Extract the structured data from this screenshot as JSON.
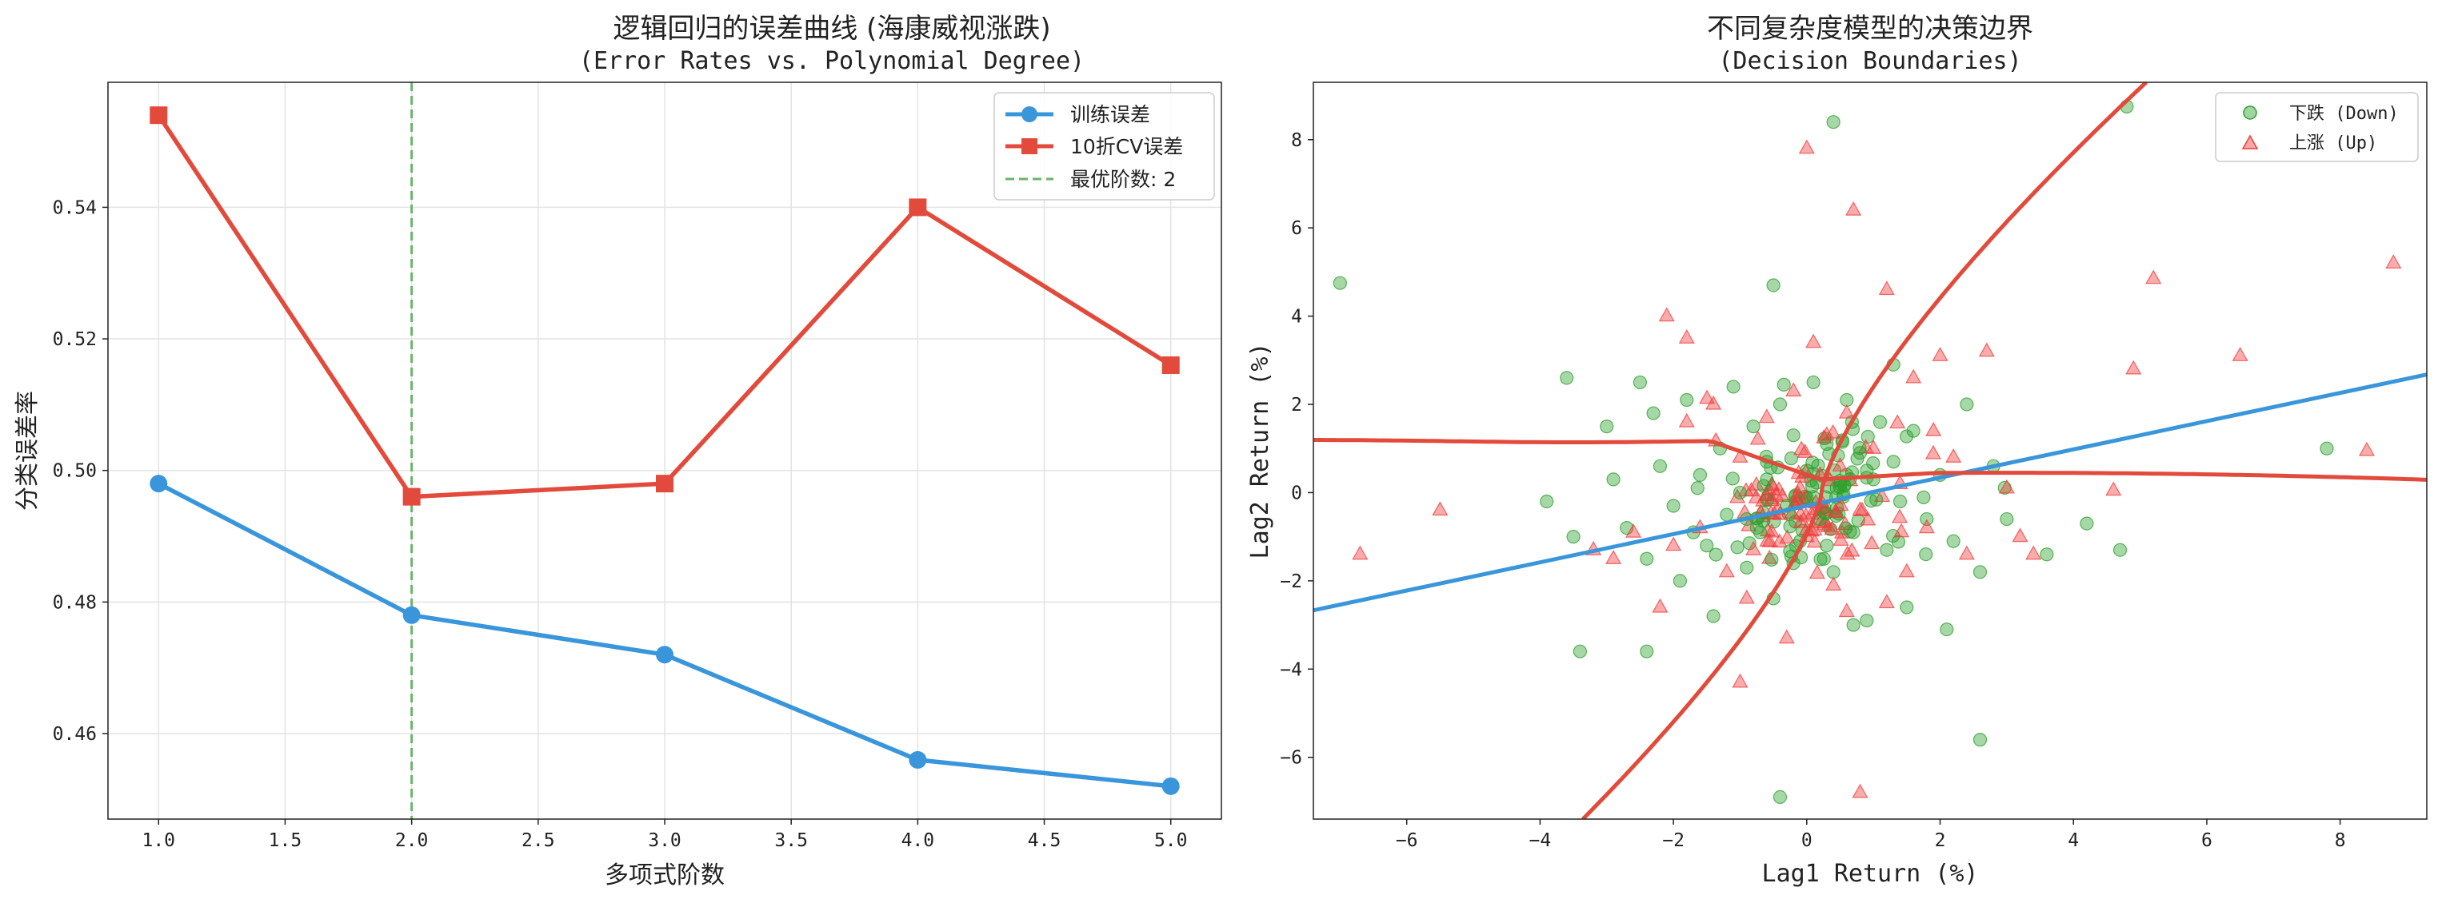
{
  "chart_data": [
    {
      "type": "line",
      "title": "逻辑回归的误差曲线 (海康威视涨跌)",
      "subtitle": "(Error Rates vs. Polynomial Degree)",
      "xlabel": "多项式阶数",
      "ylabel": "分类误差率",
      "xlim": [
        0.8,
        5.2
      ],
      "ylim": [
        0.447,
        0.559
      ],
      "xticks": [
        1.0,
        1.5,
        2.0,
        2.5,
        3.0,
        3.5,
        4.0,
        4.5,
        5.0
      ],
      "xtick_labels": [
        "1.0",
        "1.5",
        "2.0",
        "2.5",
        "3.0",
        "3.5",
        "4.0",
        "4.5",
        "5.0"
      ],
      "yticks": [
        0.46,
        0.48,
        0.5,
        0.52,
        0.54
      ],
      "ytick_labels": [
        "0.46",
        "0.48",
        "0.50",
        "0.52",
        "0.54"
      ],
      "grid": true,
      "x": [
        1,
        2,
        3,
        4,
        5
      ],
      "series": [
        {
          "name": "训练误差",
          "color": "#3a96db",
          "marker": "circle",
          "values": [
            0.498,
            0.478,
            0.472,
            0.456,
            0.452
          ]
        },
        {
          "name": "10折CV误差",
          "color": "#e24a3b",
          "marker": "square",
          "values": [
            0.554,
            0.496,
            0.498,
            0.54,
            0.516
          ]
        }
      ],
      "vline": {
        "x": 2,
        "label": "最优阶数: 2",
        "color": "#6ab46a"
      },
      "legend_position": "top-right"
    },
    {
      "type": "scatter",
      "title": "不同复杂度模型的决策边界",
      "subtitle": "(Decision Boundaries)",
      "xlabel": "Lag1 Return (%)",
      "ylabel": "Lag2 Return (%)",
      "xlim": [
        -7.4,
        9.3
      ],
      "ylim": [
        -7.4,
        9.3
      ],
      "xticks": [
        -6,
        -4,
        -2,
        0,
        2,
        4,
        6,
        8
      ],
      "xtick_labels": [
        "−6",
        "−4",
        "−2",
        "0",
        "2",
        "4",
        "6",
        "8"
      ],
      "yticks": [
        -6,
        -4,
        -2,
        0,
        2,
        4,
        6,
        8
      ],
      "ytick_labels": [
        "−6",
        "−4",
        "−2",
        "0",
        "2",
        "4",
        "6",
        "8"
      ],
      "legend_position": "top-right",
      "series": [
        {
          "name": "下跌 (Down)",
          "color": "#2ca02c",
          "marker": "circle",
          "points": [
            [
              -7.0,
              4.75
            ],
            [
              -3.6,
              2.6
            ],
            [
              -3.4,
              -3.6
            ],
            [
              -3.9,
              -0.2
            ],
            [
              -3.5,
              -1.0
            ],
            [
              -3.0,
              1.5
            ],
            [
              -2.9,
              0.3
            ],
            [
              -2.5,
              2.5
            ],
            [
              -2.7,
              -0.8
            ],
            [
              -2.4,
              -3.6
            ],
            [
              -2.3,
              1.8
            ],
            [
              -2.2,
              0.6
            ],
            [
              -2.4,
              -1.5
            ],
            [
              -2.0,
              -0.3
            ],
            [
              -1.9,
              -2.0
            ],
            [
              -1.8,
              2.1
            ],
            [
              -1.6,
              0.4
            ],
            [
              -1.5,
              -1.2
            ],
            [
              -1.4,
              -2.8
            ],
            [
              -1.3,
              1.0
            ],
            [
              -1.2,
              -0.5
            ],
            [
              -1.1,
              2.4
            ],
            [
              -1.0,
              0.0
            ],
            [
              -0.9,
              -1.7
            ],
            [
              -0.8,
              1.5
            ],
            [
              -0.7,
              -0.9
            ],
            [
              -0.6,
              0.7
            ],
            [
              -0.5,
              -2.4
            ],
            [
              -0.4,
              2.0
            ],
            [
              -0.3,
              -0.3
            ],
            [
              -0.2,
              1.3
            ],
            [
              -0.1,
              -1.1
            ],
            [
              0.0,
              0.5
            ],
            [
              0.1,
              2.5
            ],
            [
              0.2,
              -0.6
            ],
            [
              0.3,
              1.1
            ],
            [
              0.4,
              -1.8
            ],
            [
              0.5,
              0.2
            ],
            [
              0.6,
              2.1
            ],
            [
              0.7,
              -0.9
            ],
            [
              0.8,
              0.9
            ],
            [
              0.9,
              -2.9
            ],
            [
              1.0,
              0.3
            ],
            [
              1.1,
              1.6
            ],
            [
              1.2,
              -1.3
            ],
            [
              1.3,
              0.7
            ],
            [
              1.4,
              -0.2
            ],
            [
              1.6,
              1.4
            ],
            [
              1.8,
              -0.6
            ],
            [
              2.0,
              0.4
            ],
            [
              2.2,
              -1.1
            ],
            [
              2.4,
              2.0
            ],
            [
              2.6,
              -1.8
            ],
            [
              2.8,
              0.6
            ],
            [
              3.0,
              -0.6
            ],
            [
              3.6,
              -1.4
            ],
            [
              4.2,
              -0.7
            ],
            [
              4.7,
              -1.3
            ],
            [
              4.8,
              8.75
            ],
            [
              7.8,
              1.0
            ],
            [
              0.4,
              8.4
            ],
            [
              -0.5,
              4.7
            ],
            [
              -0.4,
              -6.9
            ],
            [
              2.6,
              -5.6
            ],
            [
              -1.7,
              -0.9
            ],
            [
              -0.2,
              -1.6
            ],
            [
              0.3,
              -1.2
            ],
            [
              1.5,
              -2.6
            ],
            [
              2.1,
              -3.1
            ],
            [
              1.3,
              2.9
            ],
            [
              0.7,
              -3.0
            ],
            [
              -0.9,
              -0.6
            ],
            [
              0.1,
              -0.1
            ],
            [
              -0.6,
              0.3
            ],
            [
              0.9,
              0.5
            ]
          ]
        },
        {
          "name": "上涨 (Up)",
          "color": "#f03a3a",
          "marker": "triangle",
          "points": [
            [
              0.0,
              7.8
            ],
            [
              0.7,
              6.4
            ],
            [
              -2.1,
              4.0
            ],
            [
              -1.8,
              3.5
            ],
            [
              -6.7,
              -1.4
            ],
            [
              -5.5,
              -0.4
            ],
            [
              -3.2,
              -1.3
            ],
            [
              -2.9,
              -1.5
            ],
            [
              -2.6,
              -0.9
            ],
            [
              -2.2,
              -2.6
            ],
            [
              -2.0,
              -1.2
            ],
            [
              -1.8,
              1.6
            ],
            [
              -1.6,
              -0.8
            ],
            [
              -1.4,
              2.0
            ],
            [
              -1.2,
              -1.8
            ],
            [
              -1.0,
              0.8
            ],
            [
              -0.8,
              -1.3
            ],
            [
              -0.6,
              1.7
            ],
            [
              -0.4,
              -0.5
            ],
            [
              -0.2,
              2.3
            ],
            [
              0.0,
              -1.0
            ],
            [
              0.2,
              0.4
            ],
            [
              0.4,
              -2.1
            ],
            [
              0.6,
              1.8
            ],
            [
              0.8,
              -0.4
            ],
            [
              1.0,
              1.0
            ],
            [
              1.2,
              -2.5
            ],
            [
              1.4,
              0.2
            ],
            [
              1.6,
              2.6
            ],
            [
              1.8,
              -0.8
            ],
            [
              2.0,
              3.1
            ],
            [
              2.2,
              0.8
            ],
            [
              2.4,
              -1.4
            ],
            [
              2.7,
              3.2
            ],
            [
              3.0,
              0.1
            ],
            [
              3.2,
              -1.0
            ],
            [
              3.4,
              -1.4
            ],
            [
              4.6,
              0.05
            ],
            [
              4.9,
              2.8
            ],
            [
              5.2,
              4.85
            ],
            [
              6.5,
              3.1
            ],
            [
              8.4,
              0.95
            ],
            [
              8.8,
              5.2
            ],
            [
              0.8,
              -6.8
            ],
            [
              -1.0,
              -4.3
            ],
            [
              1.2,
              4.6
            ],
            [
              0.1,
              3.4
            ],
            [
              -0.3,
              -3.3
            ],
            [
              0.6,
              -2.7
            ],
            [
              -0.9,
              -2.4
            ],
            [
              1.5,
              -1.8
            ],
            [
              0.3,
              1.3
            ],
            [
              -0.1,
              0.1
            ],
            [
              0.5,
              0.6
            ],
            [
              1.9,
              1.4
            ]
          ]
        }
      ],
      "boundaries": [
        {
          "name": "linear",
          "color": "#3a96db"
        },
        {
          "name": "polynomial",
          "color": "#e24a3b"
        }
      ]
    }
  ]
}
